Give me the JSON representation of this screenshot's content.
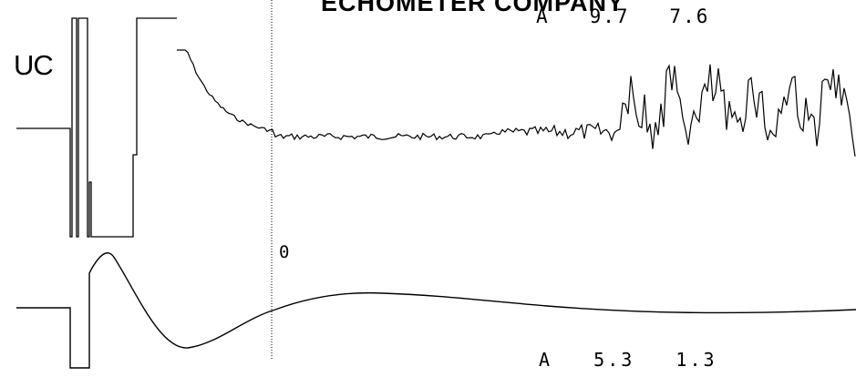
{
  "header": {
    "title": "ECHOMETER COMPANY"
  },
  "channels": {
    "top": {
      "label": "UC",
      "readout": "A   9.7   7.6"
    },
    "bottom": {
      "readout": "A   5.3   1.3"
    }
  },
  "marker": {
    "label": "0"
  },
  "colors": {
    "trace": "#000000",
    "background": "#ffffff"
  }
}
